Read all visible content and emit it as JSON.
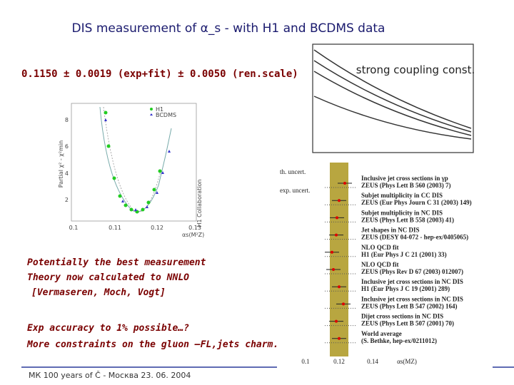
{
  "header": {
    "title": "DIS measurement of α_s - with H1 and BCDMS data",
    "result": "0.1150 ± 0.0019 (exp+fit) ± 0.0050 (ren.scale)"
  },
  "bullets": [
    "Potentially the best measurement",
    "Theory now calculated to NNLO",
    "[Vermaseren, Moch, Vogt]",
    "Exp accuracy to 1% possible…?",
    "More constraints on the gluon –FL,jets charm."
  ],
  "footer": "МК 100 years of Č - Москва 23. 06. 2004",
  "left_plot": {
    "y_label": "Partial χ² - χ²min",
    "legend": [
      "H1",
      "BCDMS"
    ],
    "x_label": "αs(M²Z)",
    "side_label": "H1 Collaboration",
    "xticks": [
      "0.1",
      "0.11",
      "0.12",
      "0.13"
    ],
    "yticks": [
      "2",
      "4",
      "6",
      "8"
    ]
  },
  "top_right_plot": {
    "label": "strong coupling const."
  },
  "bottom_right_plot": {
    "uncert_labels": [
      "th. uncert.",
      "exp. uncert."
    ],
    "entries": [
      [
        "Inclusive jet cross sections in γp",
        "ZEUS (Phys Lett B 560 (2003) 7)"
      ],
      [
        "Subjet multiplicity in CC DIS",
        "ZEUS (Eur Phys Journ C 31 (2003) 149)"
      ],
      [
        "Subjet multiplicity in NC DIS",
        "ZEUS (Phys Lett B 558 (2003) 41)"
      ],
      [
        "Jet shapes in NC DIS",
        "ZEUS (DESY 04-072 - hep-ex/0405065)"
      ],
      [
        "NLO QCD fit",
        "H1 (Eur Phys J C 21 (2001) 33)"
      ],
      [
        "NLO QCD fit",
        "ZEUS (Phys Rev D 67 (2003) 012007)"
      ],
      [
        "Inclusive jet cross sections in NC DIS",
        "H1 (Eur Phys J C 19 (2001) 289)"
      ],
      [
        "Inclusive jet cross sections in NC DIS",
        "ZEUS (Phys Lett B 547 (2002) 164)"
      ],
      [
        "Dijet cross sections in NC DIS",
        "ZEUS (Phys Lett B 507 (2001) 70)"
      ],
      [
        "World average",
        "(S. Bethke, hep-ex/0211012)"
      ]
    ],
    "xticks": [
      "0.1",
      "0.12",
      "0.14"
    ],
    "x_label": "αs(MZ)"
  }
}
